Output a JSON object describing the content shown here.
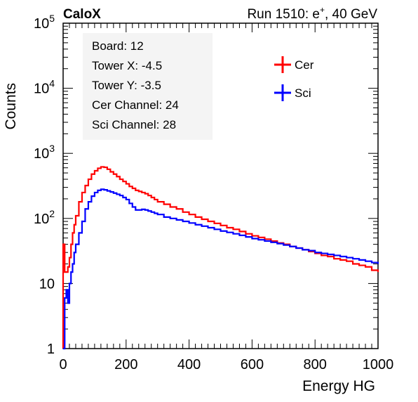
{
  "header": {
    "left": "CaloX",
    "right_prefix": "Run 1510: e",
    "right_sup": "+",
    "right_suffix": ", 40 GeV"
  },
  "info_box": {
    "lines": [
      "Board: 12",
      "Tower X: -4.5",
      "Tower Y: -3.5",
      "Cer Channel: 24",
      "Sci Channel: 28"
    ]
  },
  "chart_data": {
    "type": "line",
    "title": "",
    "xlabel": "Energy HG",
    "ylabel": "Counts",
    "xlim": [
      0,
      1000
    ],
    "ylim": [
      1,
      100000
    ],
    "y_scale": "log",
    "grid": false,
    "legend_position": "top-right",
    "x_ticks": [
      "0",
      "200",
      "400",
      "600",
      "800",
      "1000"
    ],
    "y_ticks": [
      {
        "base": "1",
        "exp": ""
      },
      {
        "base": "10",
        "exp": ""
      },
      {
        "base": "10",
        "exp": "2"
      },
      {
        "base": "10",
        "exp": "3"
      },
      {
        "base": "10",
        "exp": "4"
      },
      {
        "base": "10",
        "exp": "5"
      }
    ],
    "y_tick_values": [
      1,
      10,
      100,
      1000,
      10000,
      100000
    ],
    "series": [
      {
        "name": "Cer",
        "color": "#ff0000",
        "x": [
          0,
          5,
          10,
          15,
          20,
          25,
          30,
          35,
          40,
          50,
          60,
          70,
          80,
          90,
          100,
          110,
          120,
          130,
          140,
          150,
          160,
          170,
          180,
          190,
          200,
          210,
          220,
          230,
          240,
          250,
          260,
          270,
          280,
          290,
          300,
          320,
          340,
          360,
          380,
          400,
          420,
          440,
          460,
          480,
          500,
          520,
          540,
          560,
          580,
          600,
          620,
          640,
          660,
          680,
          700,
          720,
          740,
          760,
          780,
          800,
          820,
          840,
          860,
          880,
          900,
          920,
          940,
          960,
          980,
          1000
        ],
        "y": [
          40,
          15,
          15,
          18,
          25,
          40,
          60,
          80,
          110,
          180,
          250,
          320,
          400,
          480,
          540,
          590,
          620,
          610,
          570,
          520,
          480,
          440,
          400,
          370,
          340,
          310,
          290,
          270,
          260,
          250,
          240,
          225,
          210,
          195,
          180,
          165,
          150,
          140,
          125,
          115,
          105,
          97,
          90,
          84,
          78,
          72,
          68,
          63,
          58,
          54,
          51,
          48,
          45,
          42,
          40,
          37,
          35,
          33,
          31,
          29,
          27,
          26,
          24,
          23,
          22,
          20,
          19,
          18,
          16,
          15
        ]
      },
      {
        "name": "Sci",
        "color": "#0000ff",
        "x": [
          0,
          5,
          10,
          15,
          20,
          25,
          30,
          35,
          40,
          50,
          60,
          70,
          80,
          90,
          100,
          110,
          120,
          130,
          140,
          150,
          160,
          170,
          180,
          190,
          200,
          210,
          220,
          230,
          240,
          250,
          260,
          270,
          280,
          290,
          300,
          320,
          340,
          360,
          380,
          400,
          420,
          440,
          460,
          480,
          500,
          520,
          540,
          560,
          580,
          600,
          620,
          640,
          660,
          680,
          700,
          720,
          740,
          760,
          780,
          800,
          820,
          840,
          860,
          880,
          900,
          920,
          940,
          960,
          980,
          1000
        ],
        "y": [
          1,
          6,
          8,
          5,
          10,
          15,
          20,
          30,
          40,
          60,
          90,
          140,
          180,
          220,
          250,
          270,
          280,
          275,
          265,
          255,
          245,
          235,
          225,
          210,
          195,
          170,
          150,
          135,
          135,
          138,
          135,
          130,
          125,
          120,
          115,
          105,
          100,
          95,
          90,
          85,
          80,
          76,
          72,
          68,
          64,
          61,
          58,
          55,
          52,
          49,
          47,
          45,
          43,
          41,
          39,
          37,
          35,
          33,
          32,
          30,
          29,
          28,
          27,
          26,
          25,
          24,
          23,
          22,
          21,
          20
        ]
      }
    ]
  }
}
